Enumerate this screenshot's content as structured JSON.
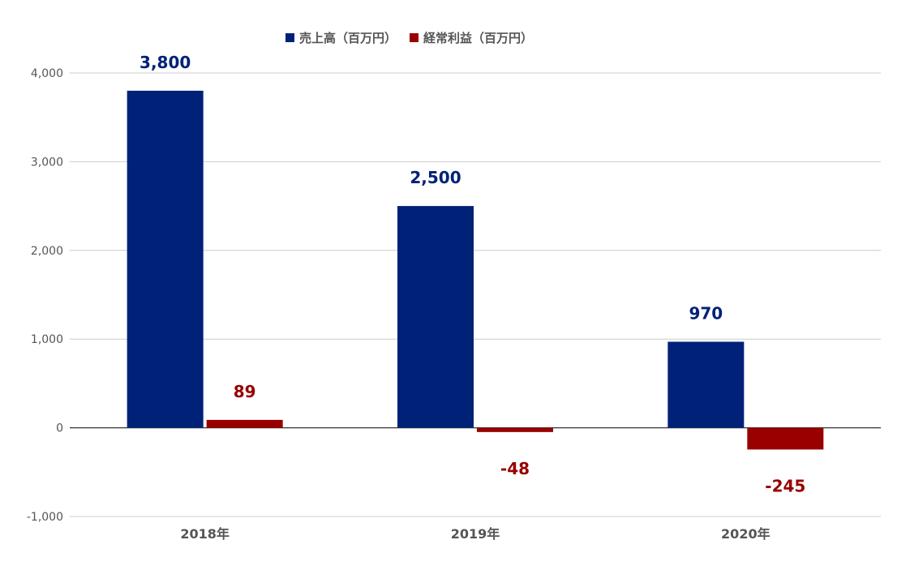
{
  "chart_data": {
    "type": "bar",
    "categories": [
      "2018年",
      "2019年",
      "2020年"
    ],
    "series": [
      {
        "name": "売上高（百万円）",
        "values": [
          3800,
          2500,
          970
        ],
        "color": "#002178",
        "labels": [
          "3,800",
          "2,500",
          "970"
        ]
      },
      {
        "name": "経常利益（百万円）",
        "values": [
          89,
          -48,
          -245
        ],
        "color": "#990000",
        "labels": [
          "89",
          "-48",
          "-245"
        ]
      }
    ],
    "yticks": [
      4000,
      3000,
      2000,
      1000,
      0,
      -1000
    ],
    "ytick_labels": [
      "4,000",
      "3,000",
      "2,000",
      "1,000",
      "0",
      "-1,000"
    ],
    "ylim": [
      -1000,
      4000
    ],
    "legend": "top",
    "grid": true,
    "title": "",
    "xlabel": "",
    "ylabel": ""
  }
}
